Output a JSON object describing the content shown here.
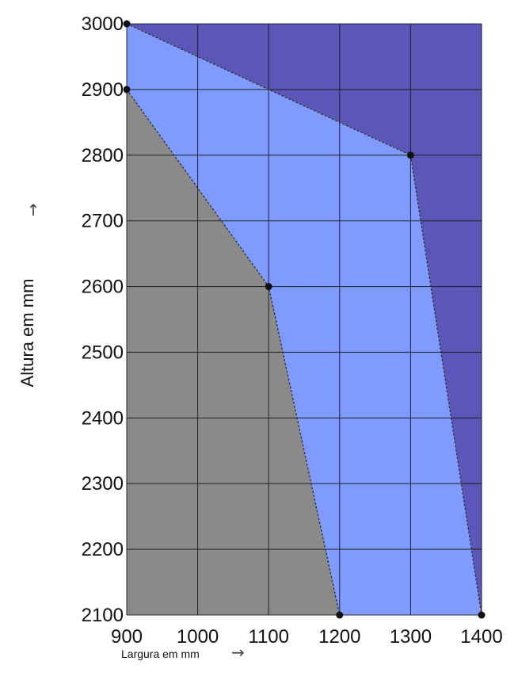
{
  "chart_data": {
    "type": "area",
    "xlabel": "Largura em mm",
    "ylabel": "Altura em mm",
    "xlim": [
      900,
      1400
    ],
    "ylim": [
      2100,
      3000
    ],
    "x_ticks": [
      900,
      1000,
      1100,
      1200,
      1300,
      1400
    ],
    "y_ticks": [
      2100,
      2200,
      2300,
      2400,
      2500,
      2600,
      2700,
      2800,
      2900,
      3000
    ],
    "grid": true,
    "x_arrow": "→",
    "y_arrow": "↑",
    "regions": [
      {
        "fill": "#5a57b8",
        "points": [
          [
            900,
            3000
          ],
          [
            1400,
            3000
          ],
          [
            1400,
            2100
          ],
          [
            1300,
            2800
          ]
        ]
      },
      {
        "fill": "#7f9bff",
        "points": [
          [
            900,
            3000
          ],
          [
            1300,
            2800
          ],
          [
            1400,
            2100
          ],
          [
            1200,
            2100
          ],
          [
            1100,
            2600
          ],
          [
            900,
            2900
          ]
        ]
      },
      {
        "fill": "#8a8a8a",
        "points": [
          [
            900,
            2900
          ],
          [
            1100,
            2600
          ],
          [
            1200,
            2100
          ],
          [
            900,
            2100
          ]
        ]
      }
    ],
    "series": [
      {
        "points": [
          [
            900,
            3000
          ],
          [
            1300,
            2800
          ],
          [
            1400,
            2100
          ]
        ],
        "color": "#333333"
      },
      {
        "points": [
          [
            900,
            2900
          ],
          [
            1100,
            2600
          ],
          [
            1200,
            2100
          ]
        ],
        "color": "#333333"
      }
    ]
  }
}
